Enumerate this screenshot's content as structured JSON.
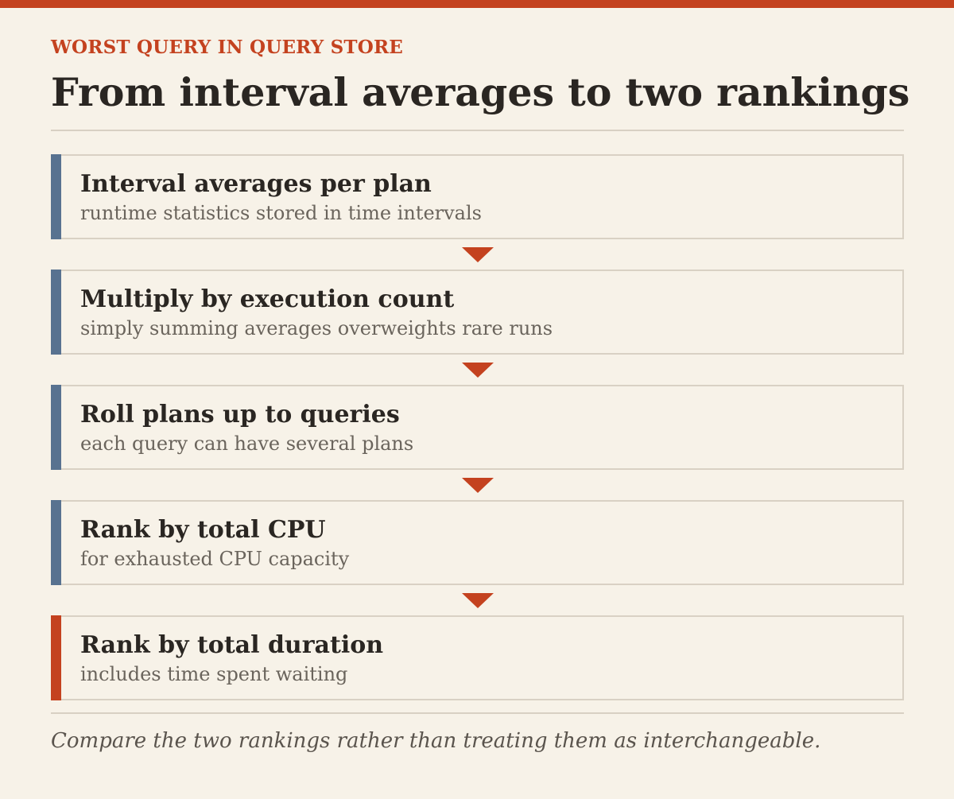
{
  "header": {
    "kicker": "WORST QUERY IN QUERY STORE",
    "title": "From interval averages to two rankings"
  },
  "colors": {
    "accent_red": "#c4421f",
    "accent_blue": "#587290",
    "background": "#f7f2e8",
    "border": "#d9d1c4"
  },
  "steps": [
    {
      "title": "Interval averages per plan",
      "subtitle": "runtime statistics stored in time intervals"
    },
    {
      "title": "Multiply by execution count",
      "subtitle": "simply summing averages overweights rare runs"
    },
    {
      "title": "Roll plans up to queries",
      "subtitle": "each query can have several plans"
    },
    {
      "title": "Rank by total CPU",
      "subtitle": "for exhausted CPU capacity"
    },
    {
      "title": "Rank by total duration",
      "subtitle": "includes time spent waiting"
    }
  ],
  "footnote": "Compare the two rankings rather than treating them as interchangeable."
}
